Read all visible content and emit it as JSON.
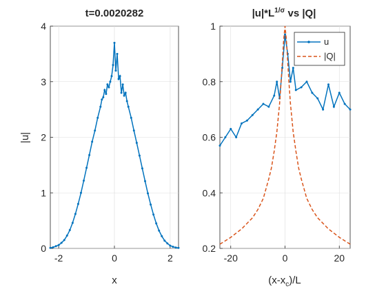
{
  "chart_data": [
    {
      "type": "line",
      "title": "t=0.0020282",
      "xlabel": "x",
      "ylabel": "|u|",
      "xlim": [
        -2.3,
        2.3
      ],
      "ylim": [
        0,
        4
      ],
      "xticks": [
        -2,
        0,
        2
      ],
      "yticks": [
        0,
        1,
        2,
        3,
        4
      ],
      "grid": true,
      "series": [
        {
          "color": "#0072BD",
          "marker": "point",
          "x": [
            -2.3,
            -2.2,
            -2.1,
            -2.0,
            -1.9,
            -1.8,
            -1.7,
            -1.6,
            -1.5,
            -1.4,
            -1.3,
            -1.2,
            -1.1,
            -1.0,
            -0.9,
            -0.8,
            -0.7,
            -0.6,
            -0.5,
            -0.45,
            -0.4,
            -0.35,
            -0.3,
            -0.25,
            -0.2,
            -0.15,
            -0.1,
            -0.05,
            0.0,
            0.05,
            0.1,
            0.15,
            0.2,
            0.25,
            0.3,
            0.35,
            0.4,
            0.45,
            0.5,
            0.6,
            0.7,
            0.8,
            0.9,
            1.0,
            1.1,
            1.2,
            1.3,
            1.4,
            1.5,
            1.6,
            1.7,
            1.8,
            1.9,
            2.0,
            2.1,
            2.2,
            2.3
          ],
          "y": [
            0.01,
            0.02,
            0.04,
            0.06,
            0.1,
            0.15,
            0.23,
            0.33,
            0.46,
            0.62,
            0.8,
            1.0,
            1.22,
            1.45,
            1.68,
            1.92,
            2.12,
            2.35,
            2.55,
            2.68,
            2.72,
            2.85,
            2.78,
            2.95,
            2.9,
            3.0,
            3.1,
            3.3,
            3.7,
            3.2,
            3.5,
            3.05,
            3.1,
            2.8,
            2.95,
            2.75,
            2.8,
            2.65,
            2.55,
            2.35,
            2.12,
            1.9,
            1.67,
            1.44,
            1.21,
            0.99,
            0.79,
            0.61,
            0.45,
            0.32,
            0.22,
            0.14,
            0.09,
            0.05,
            0.03,
            0.015,
            0.01
          ]
        }
      ]
    },
    {
      "type": "line",
      "title": "|u|*L^{1/σ} vs |Q|",
      "xlabel": "(x-x_c)/L",
      "ylabel": "",
      "xlim": [
        -24,
        24
      ],
      "ylim": [
        0.2,
        1
      ],
      "xticks": [
        -20,
        0,
        20
      ],
      "yticks": [
        0.2,
        0.4,
        0.6,
        0.8,
        1
      ],
      "grid": true,
      "legend": {
        "placement": "top-right",
        "entries": [
          "u",
          "|Q|"
        ]
      },
      "series": [
        {
          "name": "u",
          "color": "#0072BD",
          "style": "solid-point",
          "x": [
            -24,
            -22,
            -20,
            -18,
            -16,
            -14,
            -12,
            -10,
            -8,
            -6,
            -4,
            -3,
            -2,
            -1,
            0,
            1,
            2,
            3,
            4,
            6,
            8,
            10,
            12,
            14,
            16,
            18,
            20,
            22,
            24
          ],
          "y": [
            0.57,
            0.6,
            0.63,
            0.6,
            0.65,
            0.66,
            0.68,
            0.7,
            0.72,
            0.71,
            0.75,
            0.8,
            0.74,
            0.85,
            0.97,
            0.9,
            0.8,
            0.85,
            0.77,
            0.78,
            0.8,
            0.76,
            0.74,
            0.7,
            0.79,
            0.71,
            0.76,
            0.72,
            0.7
          ]
        },
        {
          "name": "|Q|",
          "color": "#D95319",
          "style": "dashed",
          "x": [
            -24,
            -20,
            -16,
            -12,
            -10,
            -8,
            -6,
            -5,
            -4,
            -3,
            -2,
            -1.5,
            -1,
            -0.5,
            0,
            0.5,
            1,
            1.5,
            2,
            3,
            4,
            5,
            6,
            8,
            10,
            12,
            16,
            20,
            24
          ],
          "y": [
            0.215,
            0.24,
            0.27,
            0.31,
            0.34,
            0.38,
            0.45,
            0.49,
            0.55,
            0.62,
            0.72,
            0.79,
            0.87,
            0.95,
            1.0,
            0.95,
            0.87,
            0.79,
            0.72,
            0.62,
            0.55,
            0.49,
            0.45,
            0.38,
            0.34,
            0.31,
            0.27,
            0.24,
            0.215
          ]
        }
      ]
    }
  ]
}
